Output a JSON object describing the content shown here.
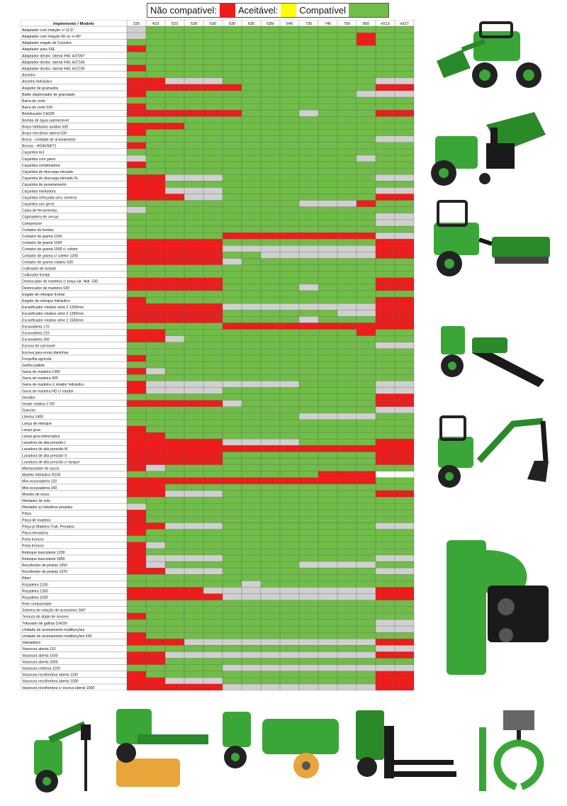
{
  "legend": [
    {
      "label": "Não compatível:",
      "color": "#ee1c1c"
    },
    {
      "label": "Aceitável:",
      "color": "#ffff00"
    },
    {
      "label": "Compatível",
      "color": "#70bd48"
    }
  ],
  "colors": {
    "N": "#ee1c1c",
    "C": "#70bd48",
    "G": "#d0d0d0",
    "W": "#ffffff",
    "Y": "#ffff00"
  },
  "table": {
    "header_first": "Implemento / Modelo",
    "models": [
      "225",
      "423",
      "523",
      "528",
      "530",
      "630",
      "635",
      "635i",
      "640",
      "735",
      "745",
      "750",
      "850",
      "e513",
      "e527"
    ],
    "rows": [
      {
        "name": "Adaptador com rotação +/-12,5°",
        "c": "GCCCCCCCCCCCCCC"
      },
      {
        "name": "Adaptador com rotação 90 ou +/-45°",
        "c": "GCCCCCCCCCCCNCC"
      },
      {
        "name": "Adaptador engate de 3 pontos",
        "c": "CCCCCCCCCCCCNCC"
      },
      {
        "name": "Adaptador para SSL",
        "c": "NCCCCCCCCCCCCCC"
      },
      {
        "name": "Adaptador desloc. lateral /Hid. A37007",
        "c": "CCCCCCCCCCCCCCC"
      },
      {
        "name": "Adaptador desloc. lateral /Hid. A37166",
        "c": "CCCCCCCCCCCCCCC"
      },
      {
        "name": "Adaptador desloc. lateral /Hid. A37235",
        "c": "NCCCCCCCCCCCCCC"
      },
      {
        "name": "Ancinho",
        "c": "CCCCCCCCCCCCCCC"
      },
      {
        "name": "Ancinho hidráulico",
        "c": "NNGGGCCCCCCCCGG"
      },
      {
        "name": "Arejador de gramados",
        "c": "NNNNNNCCCCCCCNN"
      },
      {
        "name": "Balde dispensador de granulado",
        "c": "NCCCCCCCCCCCGGG"
      },
      {
        "name": "Barra de corte",
        "c": "CCCCCCCCCCCCCCC"
      },
      {
        "name": "Barra de corte 530",
        "c": "NCCCCCCCCCCCCCC"
      },
      {
        "name": "Biotriturador CH180",
        "c": "NNNNNNCCCGCCCNN"
      },
      {
        "name": "Bomba de água submersível",
        "c": "CCCCCCCCCCCCCCC"
      },
      {
        "name": "Braço hidráulico auxiliar 530",
        "c": "NNNCCCCCCCCCCCC"
      },
      {
        "name": "Braço mecânico lateral 530",
        "c": "NCCCCCCCCCCCCCC"
      },
      {
        "name": "Broca - Unidade de acionamento",
        "c": "CCCCCCCCCCCCCGG"
      },
      {
        "name": "Brocas - HD45/58/72",
        "c": "NCCCCCCCCCCCCCC"
      },
      {
        "name": "Caçamba 4x1",
        "c": "CCCCCCCCCCCCCCC"
      },
      {
        "name": "Caçamba com garra",
        "c": "GCCCCCCCCCCCGCC"
      },
      {
        "name": "Caçamba combinadora",
        "c": "NCCCCCCCCCCCCCC"
      },
      {
        "name": "Caçamba de descarga elevada",
        "c": "CCCCCCCCCCCCCCC"
      },
      {
        "name": "Caçamba de descarga elevada XL",
        "c": "NNGGGCCCCCCCCGG"
      },
      {
        "name": "Caçamba de peneiramento",
        "c": "NNCCCCCCCCCCCCC"
      },
      {
        "name": "Caçamba niveladora",
        "c": "NNGGGCCCCCCCCGG"
      },
      {
        "name": "Caçamba reforçada serv. severos",
        "c": "NNNGGCCCCCCCCNN"
      },
      {
        "name": "Caçamba uso geral",
        "c": "CCCCCCCCCGGGNCC"
      },
      {
        "name": "Caixa de ferramentas",
        "c": "GCCCCCCCCCCCCCC"
      },
      {
        "name": "Capinadeira de cercas",
        "c": "CCCCCCCCCCCCCGG"
      },
      {
        "name": "Compressor",
        "c": "CCCCCCCCCCCCCGG"
      },
      {
        "name": "Cortador de bordas",
        "c": "CCCCCCCCCCCCCCC"
      },
      {
        "name": "Cortador de grama 1200",
        "c": "CCCCCNNNNNNNNGG"
      },
      {
        "name": "Cortador de grama 1500",
        "c": "NNNNNCCCCCCCCNN"
      },
      {
        "name": "Cortador de grama 1500 c/ coletor",
        "c": "NNNNNGGGGGGGGNN"
      },
      {
        "name": "Cortador de grama c/ coletor 1200",
        "c": "NNNNNCCGGGGGGNN"
      },
      {
        "name": "Cortador de grama rotativo 530",
        "c": "NNNNNGCCCCCCCCC"
      },
      {
        "name": "Cultivador de arraste",
        "c": "CCCCCCCCCCCCCCC"
      },
      {
        "name": "Cultivador frontal",
        "c": "CCCCCCCCCCCCCCC"
      },
      {
        "name": "Destrocador de martelos c/ braço lat. Hidr. 530",
        "c": "NNNNNCCCCCCCCNN"
      },
      {
        "name": "Destrocador de martelos 530",
        "c": "NNNNNCCCCGCCCNN"
      },
      {
        "name": "Engate de reboque frontal",
        "c": "CCCCCCCCCCCCCCC"
      },
      {
        "name": "Engate de reboque hidráulico",
        "c": "NCCCCCCCCCCCCNN"
      },
      {
        "name": "Escarificador rotativo série 2 1200mm",
        "c": "NNNNNGGGGGGGGNN"
      },
      {
        "name": "Escarificador rotativo série 2 1350mm",
        "c": "NNNNNCCCCCCGGNN"
      },
      {
        "name": "Escarificador rotativo série 2 1500mm",
        "c": "NNNNNCCCCGCCCNN"
      },
      {
        "name": "Escavadeira 170",
        "c": "CCCCCNNNNNNNNNN"
      },
      {
        "name": "Escavadeira 210",
        "c": "NNCCCCCCCCCCNCC"
      },
      {
        "name": "Escavadeira 260",
        "c": "NNGCCCCCCCCCCCC"
      },
      {
        "name": "Escova do carrossel",
        "c": "CCCCCCCCCCCCCGG"
      },
      {
        "name": "Escova para ervas daninhas",
        "c": "CCCCCCCCCCCCCCC"
      },
      {
        "name": "Forquilha agrícola",
        "c": "NCCCCCCCCCCCCCC"
      },
      {
        "name": "Garfos pallets",
        "c": "CCCCCCCCCCCCCCC"
      },
      {
        "name": "Garra de madeira 1300",
        "c": "NGCCCCCCCCCCCCC"
      },
      {
        "name": "Garra de madeira 900",
        "c": "CCCCCCCCCCCCCCC"
      },
      {
        "name": "Garra de madeira c/ rotador hidráulico",
        "c": "NGGGGGGGGCCCCGG"
      },
      {
        "name": "Garra de madeira HD c/ rotador",
        "c": "NGGGGCCCCCCCCGG"
      },
      {
        "name": "Gerador",
        "c": "CCCCCCCCCCCCCNN"
      },
      {
        "name": "Grade rotativa 1700",
        "c": "NNNNNGCCCCCCCNN"
      },
      {
        "name": "Guincho",
        "c": "CCCCCCCCCCCCCGG"
      },
      {
        "name": "Lâmina 1400",
        "c": "CCCCCCCCCGGGGCC"
      },
      {
        "name": "Lança de reboque",
        "c": "CCCCCCCCCCCCCCC"
      },
      {
        "name": "Lança grua",
        "c": "NCCCCCCCCCCCCCC"
      },
      {
        "name": "Lança grua telescópica",
        "c": "NNCCCCCCCCCCCCC"
      },
      {
        "name": "Lavadora de alta pressão L",
        "c": "NNNNNGGGGCCCCNN"
      },
      {
        "name": "Lavadora de alta pressão M",
        "c": "NNNNNNNNNNNNNNN"
      },
      {
        "name": "Lavadora de alta pressão S",
        "c": "NNNNNCCCCCCCCNN"
      },
      {
        "name": "Lavadora de alta pressão c/ tanque",
        "c": "NNNNNCCCCCCCCNN"
      },
      {
        "name": "Mamoseador de sacos",
        "c": "NGCCCCCCCCCCCCC"
      },
      {
        "name": "Martelo hidráulico B105",
        "c": "CCCCCCCCCCNNNWW"
      },
      {
        "name": "Mini-escavadeira 120",
        "c": "NNNNNNNNNNNNNCC"
      },
      {
        "name": "Mini-escavadeira 150",
        "c": "NNCCCCCCCCCCCCC"
      },
      {
        "name": "Moedor de tocos",
        "c": "NNGGGCCCCCCCCNN"
      },
      {
        "name": "Nivelador de solo",
        "c": "CCCCCCCCCCCCCCC"
      },
      {
        "name": "Nivelador p/ trabalhos pesados",
        "c": "GCCCCCCCCCCCCCC"
      },
      {
        "name": "Pinça",
        "c": "NCCCCCCCCCCCCCC"
      },
      {
        "name": "Pinça de madeira",
        "c": "NCCCCCCCCCCCCCC"
      },
      {
        "name": "Pinça p/ Madeira Trab. Pesados",
        "c": "NNGGGCCCCCCCCGG"
      },
      {
        "name": "Placa elevatória",
        "c": "NCCCCCCCCCCCCCC"
      },
      {
        "name": "Porta troncos",
        "c": "CCCCCCCCCCCCCCC"
      },
      {
        "name": "Porta troncos",
        "c": "NGCCCCCCCCCCCCC"
      },
      {
        "name": "Reboque basculante 1200",
        "c": "NCCCCCCCCCCCCCC"
      },
      {
        "name": "Reboque basculante 1800",
        "c": "NGGGGCCCCCCCCGG"
      },
      {
        "name": "Recolhedor de pedras 1050",
        "c": "NGCCCCCCCGGGGCC"
      },
      {
        "name": "Recolhedor de pedras 1370",
        "c": "NNGGGCCCCCCCCGG"
      },
      {
        "name": "Riper",
        "c": "CCCCCCCCCCCCCCC"
      },
      {
        "name": "Roçadeira 1200",
        "c": "CCCCCCGCCCCCCCC"
      },
      {
        "name": "Roçadeira 1350",
        "c": "NNNNGGGGGGGGGNN"
      },
      {
        "name": "Roçadeira 1500",
        "c": "NNNNNGGGGGGGGNN"
      },
      {
        "name": "Rolo compactador",
        "c": "CCCCCCCCCCCCCCC"
      },
      {
        "name": "Sistema de rotação de acessórios 360°",
        "c": "CCCCCCCCCCCCCCC"
      },
      {
        "name": "Tesoura de abate de árvores",
        "c": "NCCCCCCCCCCCCCC"
      },
      {
        "name": "Triturador de galhos CH100",
        "c": "CCCCCCCCCCCCCGG"
      },
      {
        "name": "Unidade de acionamento multifunções",
        "c": "CCCCCCCCCCCCCGG"
      },
      {
        "name": "Unidade de acionamento multifunções 530",
        "c": "NCCCCCCCCCCCCCC"
      },
      {
        "name": "Valetadeira",
        "c": "NNNGGGGGGGGGGNN"
      },
      {
        "name": "Vassoura aberta 110",
        "c": "CCCCCCCCCCCCCGG"
      },
      {
        "name": "Vassoura aberta 1500",
        "c": "NNGGGGGGGGGGGNN"
      },
      {
        "name": "Vassoura aberta 2000",
        "c": "NNCCCCCCCCCCCCC"
      },
      {
        "name": "Vassoura coletora 1100",
        "c": "CCCCCGGGGGGGGGG"
      },
      {
        "name": "Vassoura recolhedora aberta 1100",
        "c": "NCCCCCCCCCCCCNN"
      },
      {
        "name": "Vassoura recolhedora aberta 1500",
        "c": "NNGGGCCCCCCCCNN"
      },
      {
        "name": "Vassoura recolhedora c/ escova lateral 1500",
        "c": "NNNNNGGGGGGGGNN"
      }
    ]
  },
  "photos": [
    {
      "name": "photo-loader-bucket",
      "icon": "loader-bucket-icon"
    },
    {
      "name": "photo-wood-chipper",
      "icon": "wood-chipper-icon"
    },
    {
      "name": "photo-rotary-tiller",
      "icon": "rotary-tiller-icon"
    },
    {
      "name": "photo-trencher",
      "icon": "trencher-icon"
    },
    {
      "name": "photo-backhoe",
      "icon": "backhoe-icon"
    },
    {
      "name": "photo-flail-mower",
      "icon": "flail-mower-icon"
    },
    {
      "name": "photo-auger",
      "icon": "auger-icon"
    },
    {
      "name": "photo-brush",
      "icon": "brush-icon"
    },
    {
      "name": "photo-sweeper",
      "icon": "sweeper-icon"
    },
    {
      "name": "photo-pallet-forks",
      "icon": "pallet-forks-icon"
    },
    {
      "name": "photo-log-grapple",
      "icon": "log-grapple-icon"
    }
  ]
}
